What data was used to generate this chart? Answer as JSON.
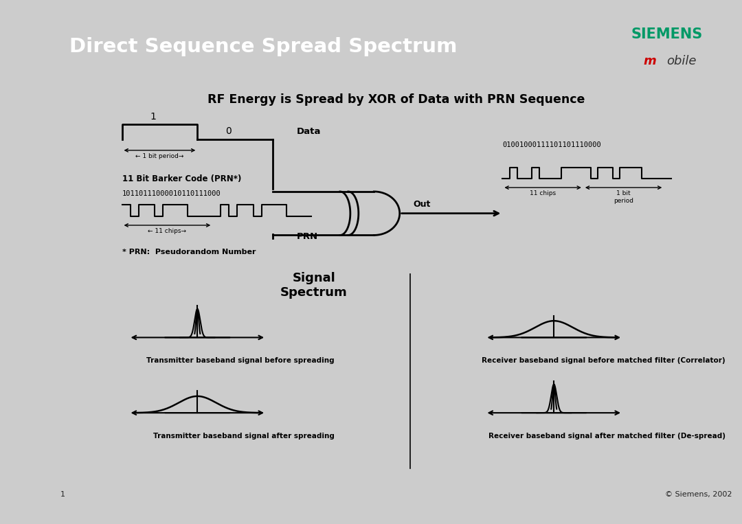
{
  "title": "Direct Sequence Spread Spectrum",
  "header_bg": "#3a7fa0",
  "header_text_color": "#ffffff",
  "siemens_color": "#009966",
  "mobile_m_color": "#cc0000",
  "mobile_rest_color": "#333333",
  "body_bg": "#ffffff",
  "outer_bg": "#cccccc",
  "footer_bg": "#f5a623",
  "footer_text": "© Siemens, 2002",
  "page_num": "1",
  "subtitle": "RF Energy is Spread by XOR of Data with PRN Sequence",
  "barker_label": "11 Bit Barker Code (PRN*)",
  "barker_bits": "10110111000010110111000",
  "prn_note": "* PRN:  Pseudorandom Number",
  "out_bits": "01001000111101101110000",
  "signal_spectrum_title": "Signal\nSpectrum",
  "label_tx_before": "Transmitter baseband signal before spreading",
  "label_rx_before": "Receiver baseband signal before matched filter (Correlator)",
  "label_tx_after": "Transmitter baseband signal after spreading",
  "label_rx_after": "Receiver baseband signal after matched filter (De-spread)"
}
